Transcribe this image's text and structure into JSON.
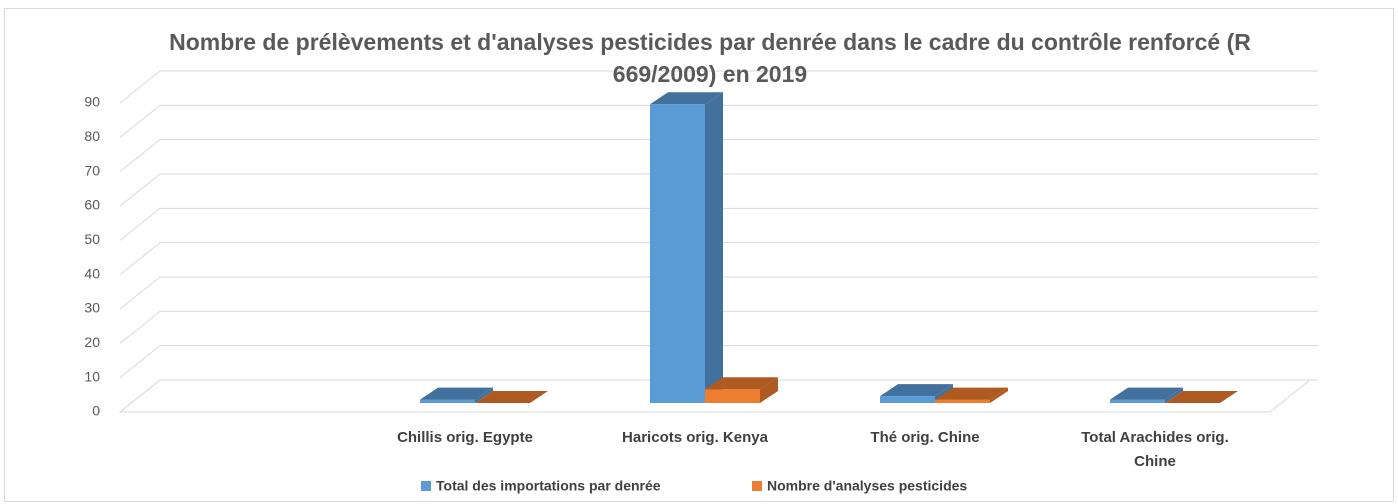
{
  "chart_data": {
    "type": "bar3d",
    "title": "Nombre de prélèvements et d'analyses pesticides par denrée dans le cadre du contrôle renforcé (R 669/2009) en 2019",
    "categories": [
      null,
      "Chillis orig. Egypte",
      "Haricots orig. Kenya",
      "Thé orig. Chine",
      "Total Arachides orig. Chine"
    ],
    "series": [
      {
        "name": "Total des importations par denrée",
        "color": "#5b9bd5",
        "side": "#41719c",
        "values": [
          null,
          1,
          87,
          2,
          1
        ]
      },
      {
        "name": "Nombre d'analyses pesticides",
        "color": "#ed7d31",
        "side": "#ae5a21",
        "values": [
          null,
          0,
          4,
          1,
          0
        ]
      }
    ],
    "ylim": [
      0,
      90
    ],
    "yticks": [
      0,
      10,
      20,
      30,
      40,
      50,
      60,
      70,
      80,
      90
    ],
    "grid": true,
    "legend": "bottom"
  }
}
